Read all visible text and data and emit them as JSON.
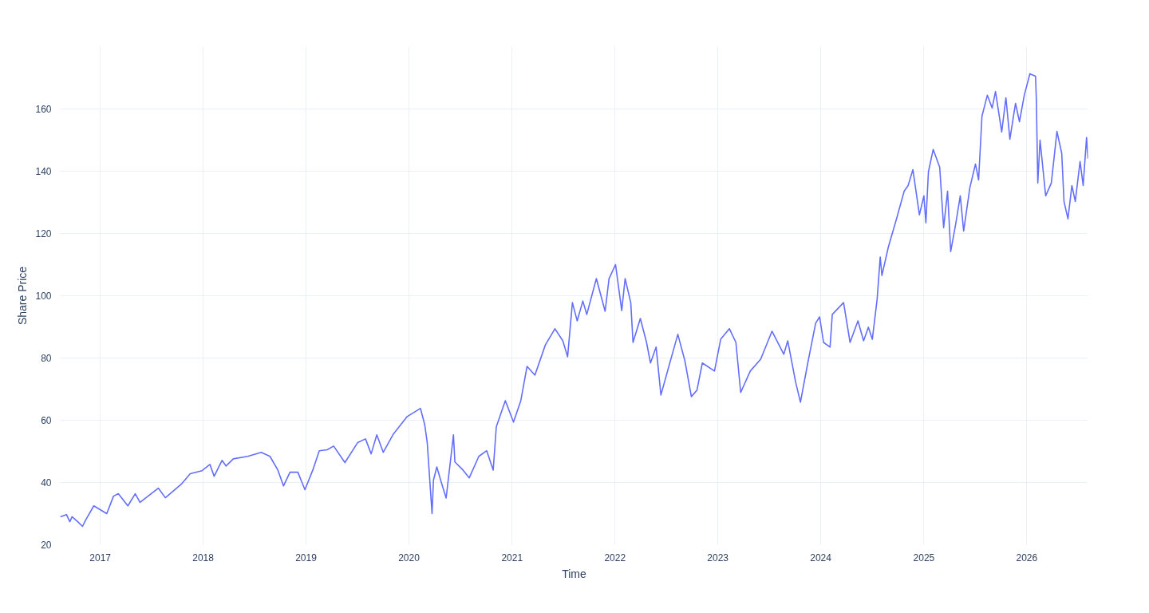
{
  "chart_data": {
    "type": "line",
    "xlabel": "Time",
    "ylabel": "Share Price",
    "x": [
      "2016-08-12",
      "2016-09-03",
      "2016-09-15",
      "2016-09-23",
      "2016-10-13",
      "2016-10-30",
      "2016-11-10",
      "2016-12-09",
      "2017-01-24",
      "2017-02-17",
      "2017-03-06",
      "2017-04-09",
      "2017-05-05",
      "2017-05-22",
      "2017-07-26",
      "2017-08-20",
      "2017-10-16",
      "2017-11-16",
      "2017-12-28",
      "2018-01-25",
      "2018-02-09",
      "2018-03-09",
      "2018-03-23",
      "2018-04-18",
      "2018-06-08",
      "2018-07-26",
      "2018-08-26",
      "2018-09-23",
      "2018-10-13",
      "2018-11-05",
      "2018-12-03",
      "2018-12-28",
      "2019-01-25",
      "2019-02-17",
      "2019-03-17",
      "2019-04-09",
      "2019-05-19",
      "2019-07-03",
      "2019-07-31",
      "2019-08-20",
      "2019-09-09",
      "2019-10-02",
      "2019-11-07",
      "2019-12-26",
      "2020-02-11",
      "2020-02-26",
      "2020-03-06",
      "2020-03-23",
      "2020-03-28",
      "2020-04-09",
      "2020-04-25",
      "2020-05-12",
      "2020-06-07",
      "2020-06-12",
      "2020-07-11",
      "2020-08-02",
      "2020-09-05",
      "2020-10-03",
      "2020-10-26",
      "2020-11-06",
      "2020-12-08",
      "2021-01-06",
      "2021-02-01",
      "2021-02-23",
      "2021-03-23",
      "2021-04-29",
      "2021-06-02",
      "2021-06-30",
      "2021-07-17",
      "2021-08-03",
      "2021-08-20",
      "2021-09-09",
      "2021-09-23",
      "2021-10-27",
      "2021-11-27",
      "2021-12-11",
      "2022-01-03",
      "2022-01-25",
      "2022-02-06",
      "2022-02-26",
      "2022-03-06",
      "2022-04-01",
      "2022-04-23",
      "2022-05-07",
      "2022-05-27",
      "2022-06-13",
      "2022-07-09",
      "2022-08-12",
      "2022-09-06",
      "2022-09-29",
      "2022-10-19",
      "2022-11-07",
      "2022-12-20",
      "2023-01-11",
      "2023-02-11",
      "2023-03-06",
      "2023-03-23",
      "2023-04-26",
      "2023-06-02",
      "2023-07-12",
      "2023-08-23",
      "2023-09-06",
      "2023-10-04",
      "2023-10-21",
      "2023-11-16",
      "2023-12-14",
      "2023-12-28",
      "2024-01-11",
      "2024-02-03",
      "2024-02-11",
      "2024-03-22",
      "2024-04-14",
      "2024-05-12",
      "2024-06-01",
      "2024-06-18",
      "2024-07-02",
      "2024-07-19",
      "2024-07-30",
      "2024-08-05",
      "2024-08-28",
      "2024-09-25",
      "2024-10-23",
      "2024-11-06",
      "2024-11-23",
      "2024-12-16",
      "2025-01-01",
      "2025-01-08",
      "2025-01-17",
      "2025-02-03",
      "2025-02-26",
      "2025-03-12",
      "2025-03-26",
      "2025-04-06",
      "2025-04-23",
      "2025-05-10",
      "2025-05-22",
      "2025-06-13",
      "2025-07-03",
      "2025-07-14",
      "2025-07-26",
      "2025-08-14",
      "2025-08-31",
      "2025-09-12",
      "2025-10-04",
      "2025-10-19",
      "2025-11-02",
      "2025-11-22",
      "2025-12-06",
      "2025-12-23",
      "2026-01-12",
      "2026-02-01",
      "2026-02-04",
      "2026-02-09",
      "2026-02-17",
      "2026-03-09",
      "2026-03-29",
      "2026-04-18",
      "2026-05-05",
      "2026-05-13",
      "2026-05-27",
      "2026-06-10",
      "2026-06-22",
      "2026-07-09",
      "2026-07-20",
      "2026-08-01",
      "2026-08-06"
    ],
    "series": [
      {
        "color": "#636efa",
        "values": [
          29.0,
          29.7,
          27.4,
          29.0,
          27.4,
          25.9,
          27.9,
          32.5,
          30.0,
          35.6,
          36.4,
          32.5,
          36.4,
          33.6,
          38.2,
          35.1,
          39.5,
          42.8,
          43.8,
          45.8,
          42.0,
          47.1,
          45.3,
          47.6,
          48.4,
          49.7,
          48.4,
          44.0,
          38.9,
          43.3,
          43.3,
          37.7,
          44.0,
          50.2,
          50.5,
          51.7,
          46.4,
          52.8,
          54.0,
          49.2,
          55.3,
          49.7,
          55.6,
          61.2,
          63.8,
          58.6,
          52.8,
          30.0,
          40.7,
          45.0,
          40.0,
          35.0,
          55.3,
          46.6,
          44.0,
          41.5,
          48.4,
          50.2,
          44.0,
          57.9,
          66.3,
          59.4,
          66.3,
          77.3,
          74.5,
          84.2,
          89.4,
          85.5,
          80.4,
          97.8,
          91.9,
          98.3,
          94.0,
          105.5,
          95.0,
          105.5,
          110.0,
          95.2,
          105.5,
          97.8,
          85.0,
          92.7,
          85.0,
          78.4,
          83.5,
          68.1,
          76.6,
          87.6,
          79.1,
          67.6,
          69.7,
          78.4,
          75.8,
          86.0,
          89.4,
          85.0,
          68.9,
          75.8,
          79.6,
          88.6,
          81.2,
          85.5,
          72.2,
          65.8,
          78.4,
          91.2,
          93.2,
          85.0,
          83.5,
          94.0,
          97.8,
          85.0,
          91.9,
          85.5,
          89.9,
          86.0,
          98.8,
          112.4,
          106.5,
          115.7,
          124.4,
          133.6,
          135.4,
          140.5,
          126.0,
          132.1,
          123.4,
          139.8,
          147.0,
          141.3,
          121.9,
          133.6,
          114.2,
          122.6,
          132.1,
          120.8,
          134.7,
          142.3,
          137.2,
          157.7,
          164.4,
          160.3,
          165.6,
          152.6,
          163.6,
          150.3,
          161.8,
          155.9,
          164.4,
          171.3,
          170.5,
          162.8,
          136.2,
          150.0,
          132.1,
          136.2,
          152.8,
          145.7,
          130.3,
          124.7,
          135.4,
          130.3,
          143.1,
          135.4,
          150.8,
          144.0
        ]
      }
    ],
    "xlim": [
      "2016-08-12",
      "2026-08-06"
    ],
    "xticks": [
      "2017",
      "2018",
      "2019",
      "2020",
      "2021",
      "2022",
      "2023",
      "2024",
      "2025",
      "2026"
    ],
    "ylim": [
      20,
      180
    ],
    "yticks": [
      20,
      40,
      60,
      80,
      100,
      120,
      140,
      160
    ],
    "grid": true,
    "marker": "none",
    "line_style": "solid"
  }
}
